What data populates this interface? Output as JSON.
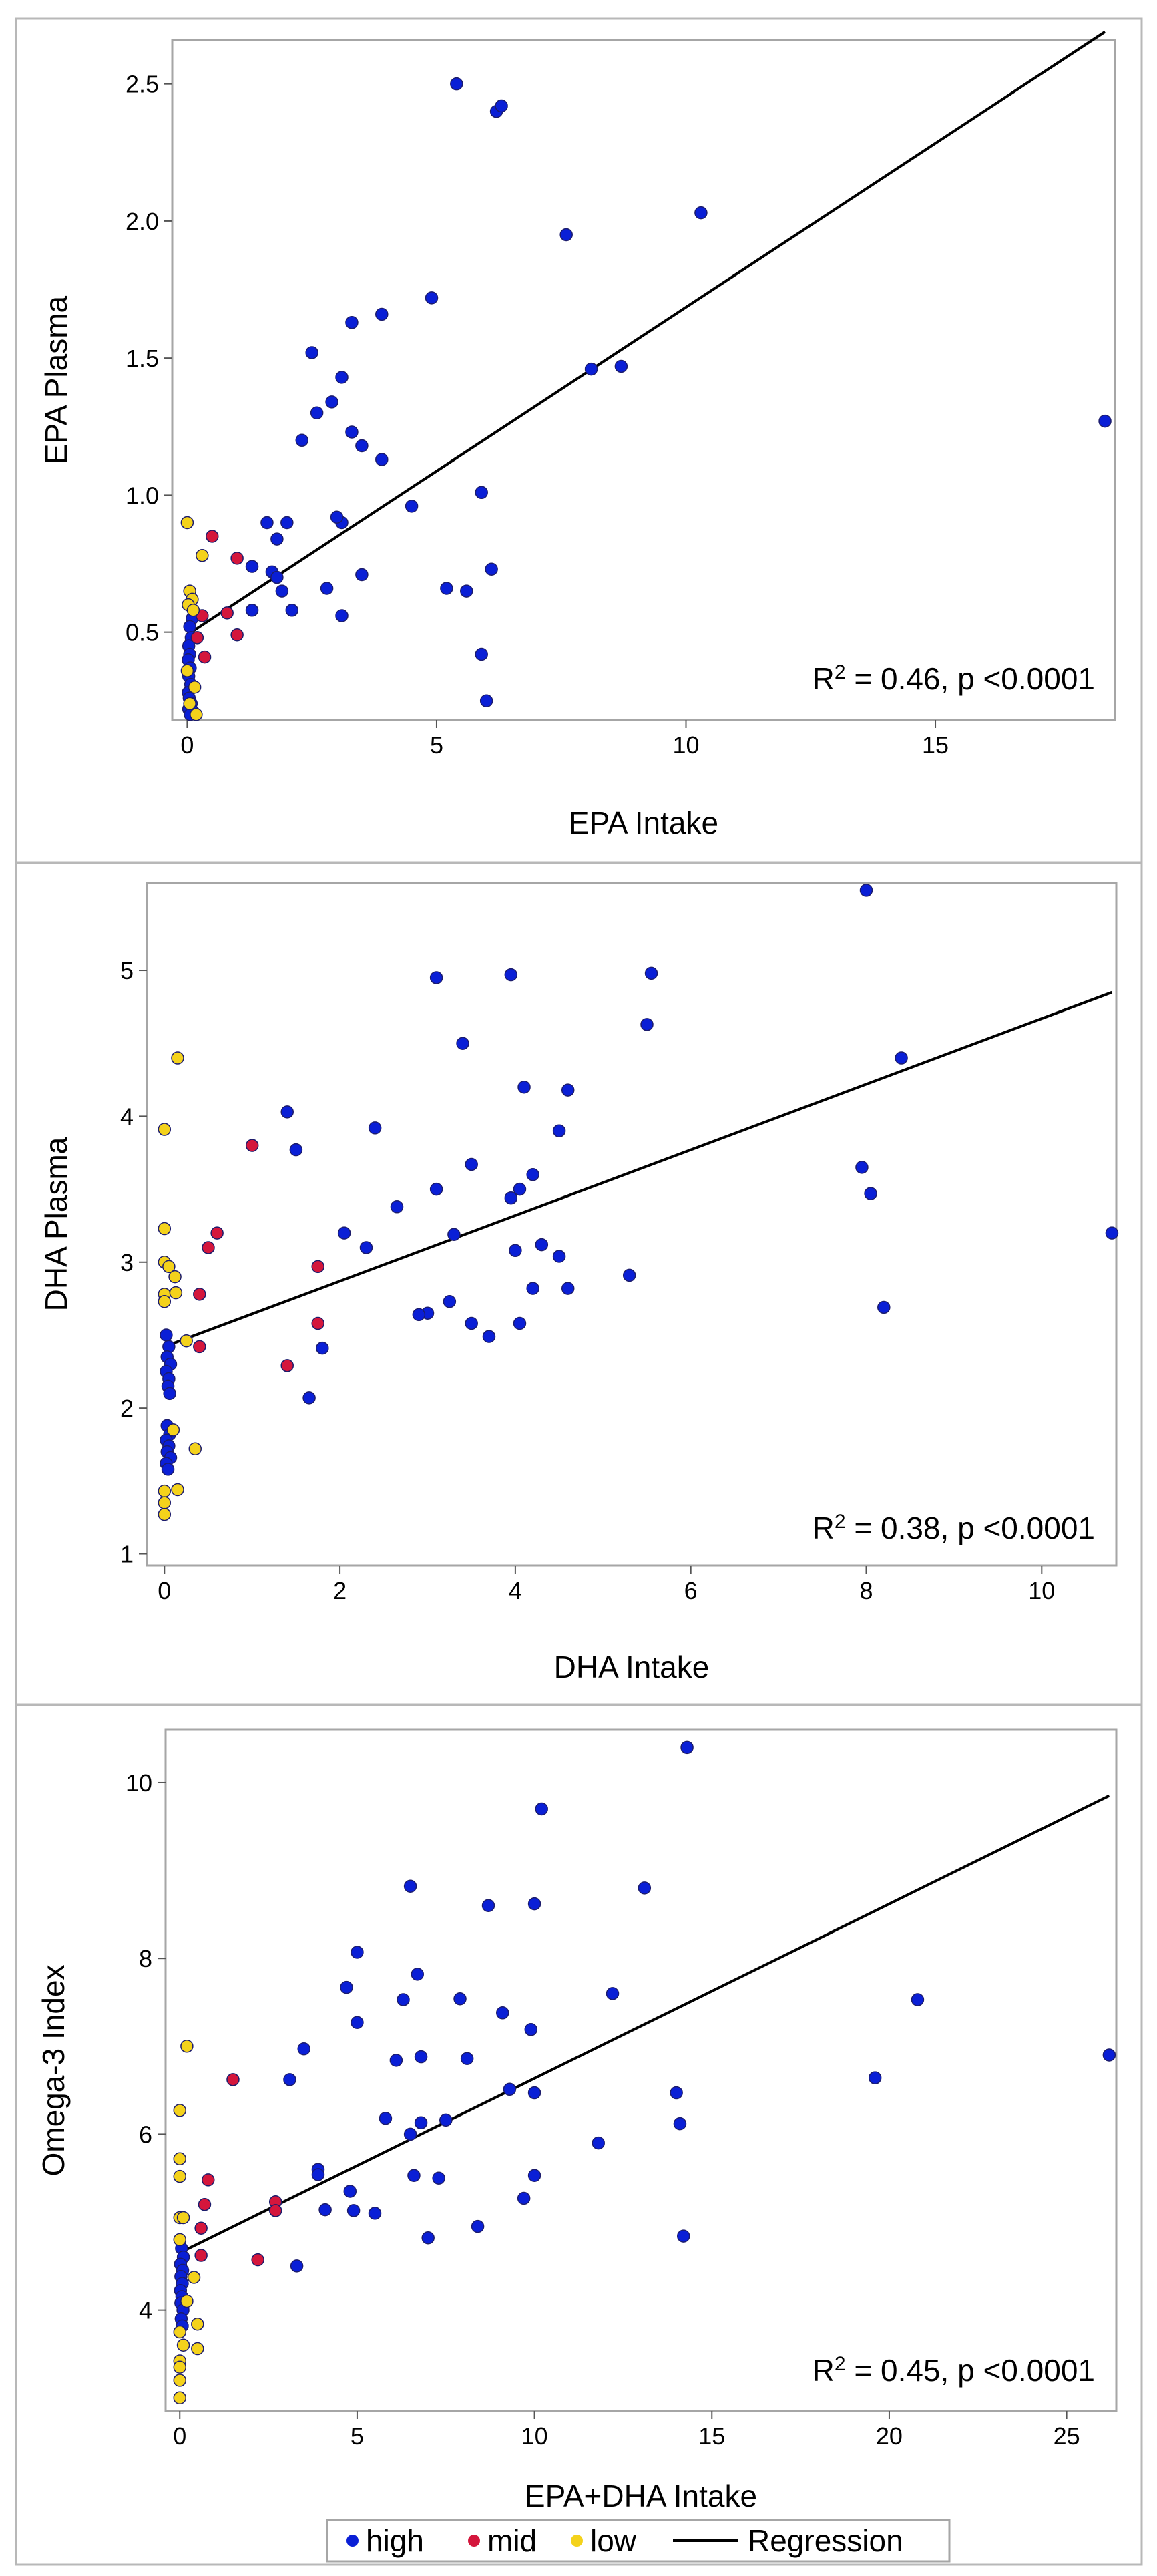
{
  "colors": {
    "high": "#0a1fd6",
    "mid": "#d4163c",
    "low": "#f4d21b",
    "regression": "#000000",
    "dot_edge": "#1c1c6c"
  },
  "legend": {
    "items": [
      {
        "label": "high",
        "color": "#0a1fd6",
        "kind": "marker"
      },
      {
        "label": "mid",
        "color": "#d4163c",
        "kind": "marker"
      },
      {
        "label": "low",
        "color": "#f4d21b",
        "kind": "marker"
      },
      {
        "label": "Regression",
        "color": "#000000",
        "kind": "line"
      }
    ]
  },
  "chart_data": [
    {
      "type": "scatter",
      "title": "",
      "xlabel": "EPA Intake",
      "ylabel": "EPA Plasma",
      "xlim": [
        -0.3,
        18.6
      ],
      "ylim": [
        0.18,
        2.66
      ],
      "xticks": [
        0,
        5,
        10,
        15
      ],
      "yticks": [
        0.5,
        1.0,
        1.5,
        2.0,
        2.5
      ],
      "tick_decimals": 1,
      "annotation": {
        "prefix": "R",
        "sup": "2",
        "suffix": " = 0.46, p <0.0001"
      },
      "regression": {
        "x": [
          0,
          18.4
        ],
        "y": [
          0.49,
          2.69
        ]
      },
      "series": [
        {
          "name": "high",
          "points": [
            [
              5.4,
              2.5
            ],
            [
              6.2,
              2.4
            ],
            [
              6.3,
              2.42
            ],
            [
              10.3,
              2.03
            ],
            [
              7.6,
              1.95
            ],
            [
              4.9,
              1.72
            ],
            [
              3.9,
              1.66
            ],
            [
              3.3,
              1.63
            ],
            [
              2.5,
              1.52
            ],
            [
              8.1,
              1.46
            ],
            [
              8.7,
              1.47
            ],
            [
              3.1,
              1.43
            ],
            [
              2.9,
              1.34
            ],
            [
              2.6,
              1.3
            ],
            [
              3.3,
              1.23
            ],
            [
              2.3,
              1.2
            ],
            [
              3.5,
              1.18
            ],
            [
              3.9,
              1.13
            ],
            [
              18.4,
              1.27
            ],
            [
              5.9,
              1.01
            ],
            [
              4.5,
              0.96
            ],
            [
              3.1,
              0.9
            ],
            [
              3.0,
              0.92
            ],
            [
              2.0,
              0.9
            ],
            [
              1.6,
              0.9
            ],
            [
              1.8,
              0.84
            ],
            [
              1.7,
              0.72
            ],
            [
              1.3,
              0.74
            ],
            [
              1.9,
              0.65
            ],
            [
              1.8,
              0.7
            ],
            [
              2.8,
              0.66
            ],
            [
              3.5,
              0.71
            ],
            [
              5.2,
              0.66
            ],
            [
              5.6,
              0.65
            ],
            [
              6.1,
              0.73
            ],
            [
              2.1,
              0.58
            ],
            [
              1.3,
              0.58
            ],
            [
              3.1,
              0.56
            ],
            [
              5.9,
              0.42
            ],
            [
              6.0,
              0.25
            ],
            [
              0.1,
              0.55
            ],
            [
              0.05,
              0.52
            ],
            [
              0.08,
              0.48
            ],
            [
              0.03,
              0.45
            ],
            [
              0.05,
              0.42
            ],
            [
              0.02,
              0.4
            ],
            [
              0.06,
              0.37
            ],
            [
              0.03,
              0.34
            ],
            [
              0.07,
              0.31
            ],
            [
              0.02,
              0.28
            ],
            [
              0.04,
              0.26
            ],
            [
              0.08,
              0.24
            ],
            [
              0.03,
              0.22
            ],
            [
              0.12,
              0.21
            ],
            [
              0.06,
              0.2
            ]
          ]
        },
        {
          "name": "mid",
          "points": [
            [
              0.5,
              0.85
            ],
            [
              1.0,
              0.77
            ],
            [
              0.8,
              0.57
            ],
            [
              1.0,
              0.49
            ],
            [
              0.3,
              0.56
            ],
            [
              0.2,
              0.48
            ],
            [
              0.35,
              0.41
            ]
          ]
        },
        {
          "name": "low",
          "points": [
            [
              0.0,
              0.9
            ],
            [
              0.3,
              0.78
            ],
            [
              0.05,
              0.65
            ],
            [
              0.1,
              0.62
            ],
            [
              0.02,
              0.6
            ],
            [
              0.12,
              0.58
            ],
            [
              0.0,
              0.36
            ],
            [
              0.15,
              0.3
            ],
            [
              0.05,
              0.24
            ],
            [
              0.18,
              0.2
            ]
          ]
        }
      ]
    },
    {
      "type": "scatter",
      "title": "",
      "xlabel": "DHA Intake",
      "ylabel": "DHA Plasma",
      "xlim": [
        -0.2,
        10.85
      ],
      "ylim": [
        0.92,
        5.6
      ],
      "xticks": [
        0,
        2,
        4,
        6,
        8,
        10
      ],
      "yticks": [
        1,
        2,
        3,
        4,
        5
      ],
      "tick_decimals": 0,
      "annotation": {
        "prefix": "R",
        "sup": "2",
        "suffix": " = 0.38, p <0.0001"
      },
      "regression": {
        "x": [
          0,
          10.8
        ],
        "y": [
          2.42,
          4.85
        ]
      },
      "series": [
        {
          "name": "high",
          "points": [
            [
              8.0,
              5.55
            ],
            [
              3.1,
              4.95
            ],
            [
              3.95,
              4.97
            ],
            [
              5.55,
              4.98
            ],
            [
              5.5,
              4.63
            ],
            [
              3.4,
              4.5
            ],
            [
              8.4,
              4.4
            ],
            [
              4.1,
              4.2
            ],
            [
              4.6,
              4.18
            ],
            [
              1.4,
              4.03
            ],
            [
              2.4,
              3.92
            ],
            [
              4.5,
              3.9
            ],
            [
              1.5,
              3.77
            ],
            [
              3.5,
              3.67
            ],
            [
              7.95,
              3.65
            ],
            [
              4.2,
              3.6
            ],
            [
              4.05,
              3.5
            ],
            [
              3.1,
              3.5
            ],
            [
              8.05,
              3.47
            ],
            [
              3.95,
              3.44
            ],
            [
              2.65,
              3.38
            ],
            [
              2.05,
              3.2
            ],
            [
              3.3,
              3.19
            ],
            [
              10.8,
              3.2
            ],
            [
              4.3,
              3.12
            ],
            [
              2.3,
              3.1
            ],
            [
              4.0,
              3.08
            ],
            [
              4.5,
              3.04
            ],
            [
              5.3,
              2.91
            ],
            [
              4.2,
              2.82
            ],
            [
              4.6,
              2.82
            ],
            [
              3.25,
              2.73
            ],
            [
              8.2,
              2.69
            ],
            [
              3.0,
              2.65
            ],
            [
              2.9,
              2.64
            ],
            [
              3.5,
              2.58
            ],
            [
              4.05,
              2.58
            ],
            [
              3.7,
              2.49
            ],
            [
              1.8,
              2.41
            ],
            [
              1.65,
              2.07
            ],
            [
              0.02,
              2.5
            ],
            [
              0.05,
              2.42
            ],
            [
              0.03,
              2.35
            ],
            [
              0.07,
              2.3
            ],
            [
              0.02,
              2.25
            ],
            [
              0.05,
              2.2
            ],
            [
              0.04,
              2.15
            ],
            [
              0.06,
              2.1
            ],
            [
              0.03,
              1.88
            ],
            [
              0.06,
              1.82
            ],
            [
              0.02,
              1.78
            ],
            [
              0.05,
              1.74
            ],
            [
              0.03,
              1.7
            ],
            [
              0.07,
              1.66
            ],
            [
              0.02,
              1.62
            ],
            [
              0.04,
              1.58
            ]
          ]
        },
        {
          "name": "mid",
          "points": [
            [
              1.0,
              3.8
            ],
            [
              0.6,
              3.2
            ],
            [
              0.5,
              3.1
            ],
            [
              1.75,
              2.97
            ],
            [
              0.4,
              2.78
            ],
            [
              1.75,
              2.58
            ],
            [
              0.4,
              2.42
            ],
            [
              1.4,
              2.29
            ]
          ]
        },
        {
          "name": "low",
          "points": [
            [
              0.15,
              4.4
            ],
            [
              0.0,
              3.91
            ],
            [
              0.0,
              3.23
            ],
            [
              0.0,
              3.0
            ],
            [
              0.05,
              2.97
            ],
            [
              0.12,
              2.9
            ],
            [
              0.0,
              2.78
            ],
            [
              0.13,
              2.79
            ],
            [
              0.0,
              2.73
            ],
            [
              0.25,
              2.46
            ],
            [
              0.1,
              1.85
            ],
            [
              0.35,
              1.72
            ],
            [
              0.0,
              1.43
            ],
            [
              0.15,
              1.44
            ],
            [
              0.0,
              1.35
            ],
            [
              0.0,
              1.27
            ]
          ]
        }
      ]
    },
    {
      "type": "scatter",
      "title": "",
      "xlabel": "EPA+DHA Intake",
      "ylabel": "Omega-3 Index",
      "xlim": [
        -0.4,
        26.4
      ],
      "ylim": [
        2.85,
        10.6
      ],
      "xticks": [
        0,
        5,
        10,
        15,
        20,
        25
      ],
      "yticks": [
        4,
        6,
        8,
        10
      ],
      "tick_decimals": 0,
      "annotation": {
        "prefix": "R",
        "sup": "2",
        "suffix": " = 0.45, p <0.0001"
      },
      "regression": {
        "x": [
          0,
          26.2
        ],
        "y": [
          4.65,
          9.85
        ]
      },
      "series": [
        {
          "name": "high",
          "points": [
            [
              14.3,
              10.4
            ],
            [
              10.2,
              9.7
            ],
            [
              6.5,
              8.82
            ],
            [
              13.1,
              8.8
            ],
            [
              8.7,
              8.6
            ],
            [
              10.0,
              8.62
            ],
            [
              5.0,
              8.07
            ],
            [
              6.7,
              7.82
            ],
            [
              4.7,
              7.67
            ],
            [
              12.2,
              7.6
            ],
            [
              20.8,
              7.53
            ],
            [
              6.3,
              7.53
            ],
            [
              7.9,
              7.54
            ],
            [
              9.1,
              7.38
            ],
            [
              5.0,
              7.27
            ],
            [
              9.9,
              7.19
            ],
            [
              3.5,
              6.97
            ],
            [
              6.8,
              6.88
            ],
            [
              8.1,
              6.86
            ],
            [
              6.1,
              6.84
            ],
            [
              26.2,
              6.9
            ],
            [
              3.1,
              6.62
            ],
            [
              19.6,
              6.64
            ],
            [
              9.3,
              6.51
            ],
            [
              10.0,
              6.47
            ],
            [
              14.0,
              6.47
            ],
            [
              5.8,
              6.18
            ],
            [
              7.5,
              6.16
            ],
            [
              6.8,
              6.13
            ],
            [
              14.1,
              6.12
            ],
            [
              6.5,
              6.0
            ],
            [
              11.8,
              5.9
            ],
            [
              3.9,
              5.6
            ],
            [
              3.9,
              5.54
            ],
            [
              10.0,
              5.53
            ],
            [
              6.6,
              5.53
            ],
            [
              7.3,
              5.5
            ],
            [
              4.8,
              5.35
            ],
            [
              9.7,
              5.27
            ],
            [
              4.1,
              5.14
            ],
            [
              4.9,
              5.13
            ],
            [
              5.5,
              5.1
            ],
            [
              8.4,
              4.95
            ],
            [
              7.0,
              4.82
            ],
            [
              14.2,
              4.84
            ],
            [
              3.3,
              4.5
            ],
            [
              0.05,
              4.7
            ],
            [
              0.1,
              4.6
            ],
            [
              0.02,
              4.52
            ],
            [
              0.08,
              4.45
            ],
            [
              0.03,
              4.38
            ],
            [
              0.07,
              4.3
            ],
            [
              0.02,
              4.22
            ],
            [
              0.06,
              4.15
            ],
            [
              0.03,
              4.08
            ],
            [
              0.09,
              4.0
            ],
            [
              0.04,
              3.9
            ],
            [
              0.07,
              3.82
            ]
          ]
        },
        {
          "name": "mid",
          "points": [
            [
              1.5,
              6.62
            ],
            [
              0.8,
              5.48
            ],
            [
              2.7,
              5.23
            ],
            [
              0.7,
              5.2
            ],
            [
              2.7,
              5.13
            ],
            [
              0.6,
              4.93
            ],
            [
              0.6,
              4.62
            ],
            [
              2.2,
              4.57
            ]
          ]
        },
        {
          "name": "low",
          "points": [
            [
              0.2,
              7.0
            ],
            [
              0.0,
              6.27
            ],
            [
              0.0,
              5.72
            ],
            [
              0.0,
              5.52
            ],
            [
              0.0,
              5.05
            ],
            [
              0.1,
              5.05
            ],
            [
              0.0,
              4.8
            ],
            [
              0.4,
              4.37
            ],
            [
              0.2,
              4.1
            ],
            [
              0.5,
              3.84
            ],
            [
              0.0,
              3.75
            ],
            [
              0.1,
              3.6
            ],
            [
              0.5,
              3.56
            ],
            [
              0.0,
              3.42
            ],
            [
              0.0,
              3.35
            ],
            [
              0.0,
              3.2
            ],
            [
              0.0,
              3.0
            ]
          ]
        }
      ]
    }
  ]
}
